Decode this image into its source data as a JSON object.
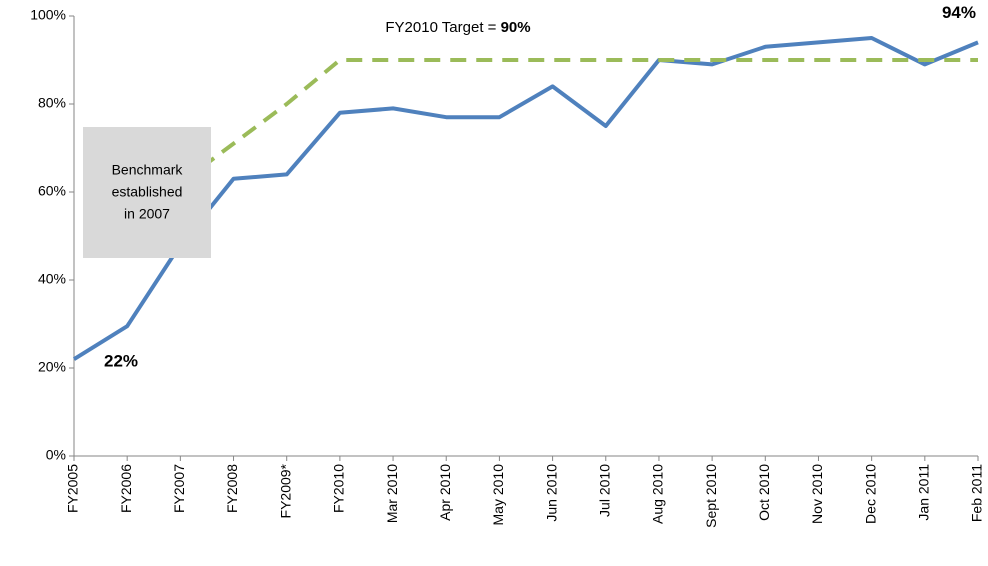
{
  "chart_data": {
    "type": "line",
    "categories": [
      "FY2005",
      "FY2006",
      "FY2007",
      "FY2008",
      "FY2009*",
      "FY2010",
      "Mar 2010",
      "Apr 2010",
      "May 2010",
      "Jun 2010",
      "Jul 2010",
      "Aug 2010",
      "Sept 2010",
      "Oct 2010",
      "Nov 2010",
      "Dec 2010",
      "Jan 2011",
      "Feb 2011"
    ],
    "series": [
      {
        "color": "#4f81bd",
        "dashed": false,
        "values": [
          22,
          29.5,
          48,
          63,
          64,
          78,
          79,
          77,
          77,
          84,
          75,
          90,
          89,
          93,
          94,
          95,
          89,
          94
        ],
        "value_labels": [
          "22%",
          null,
          null,
          null,
          null,
          null,
          null,
          null,
          null,
          null,
          null,
          null,
          null,
          null,
          null,
          null,
          null,
          "94%"
        ]
      },
      {
        "color": "#9bbb59",
        "dashed": true,
        "values": [
          null,
          null,
          62,
          71,
          80,
          90,
          90,
          90,
          90,
          90,
          90,
          90,
          90,
          90,
          90,
          90,
          90,
          90
        ]
      }
    ],
    "ylim": [
      0,
      100
    ],
    "yticks": [
      {
        "value": 0,
        "label": "0%"
      },
      {
        "value": 20,
        "label": "20%"
      },
      {
        "value": 40,
        "label": "40%"
      },
      {
        "value": 60,
        "label": "60%"
      },
      {
        "value": 80,
        "label": "80%"
      },
      {
        "value": 100,
        "label": "100%"
      }
    ],
    "grid": false,
    "target_annotation": {
      "text": "FY2010 Target = ",
      "bold": "90%"
    },
    "box_annotation": [
      "Benchmark",
      "established",
      "in 2007"
    ]
  }
}
